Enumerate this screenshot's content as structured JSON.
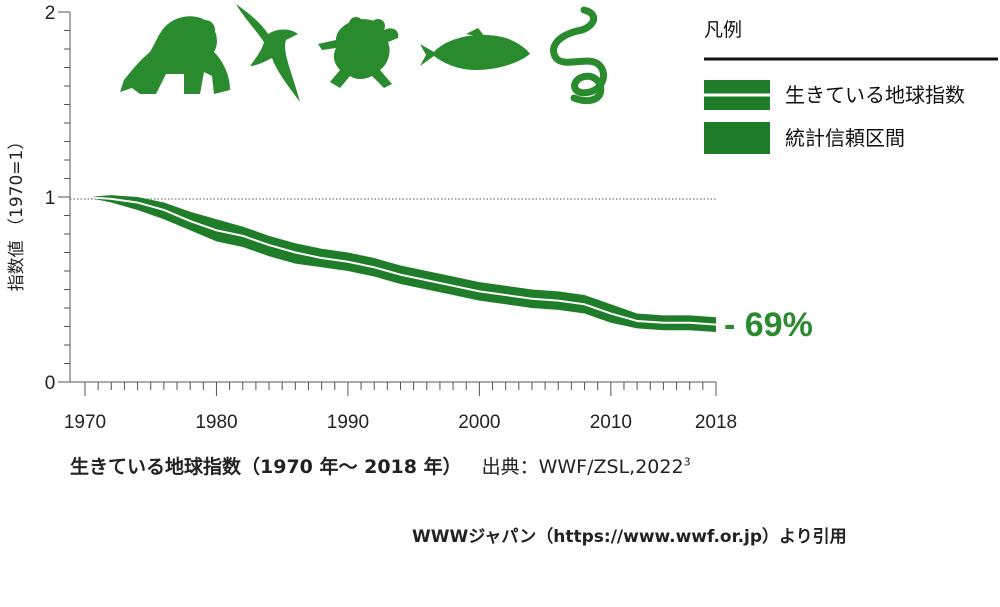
{
  "chart_data": {
    "type": "area",
    "title": "生きている地球指数（1970 年〜 2018 年）",
    "source_label": "出典：WWF/ZSL,2022",
    "source_superscript": "3",
    "ylabel": "指数値 （1970=1）",
    "xlim": [
      1970,
      2018
    ],
    "ylim": [
      0,
      2
    ],
    "x_ticks": [
      "1970",
      "1980",
      "1990",
      "2000",
      "2010",
      "2018"
    ],
    "y_ticks": [
      "0",
      "1",
      "2"
    ],
    "reference_line": 1,
    "change_label": "- 69%",
    "series": [
      {
        "name": "生きている地球指数",
        "x": [
          1970,
          1972,
          1974,
          1976,
          1978,
          1980,
          1982,
          1984,
          1986,
          1988,
          1990,
          1992,
          1994,
          1996,
          1998,
          2000,
          2002,
          2004,
          2006,
          2008,
          2010,
          2012,
          2014,
          2016,
          2018
        ],
        "values": [
          1.0,
          0.99,
          0.97,
          0.93,
          0.87,
          0.82,
          0.79,
          0.74,
          0.7,
          0.67,
          0.65,
          0.62,
          0.58,
          0.55,
          0.52,
          0.49,
          0.47,
          0.45,
          0.44,
          0.42,
          0.37,
          0.33,
          0.32,
          0.32,
          0.31
        ]
      },
      {
        "name": "統計信頼区間",
        "upper": [
          1.0,
          1.01,
          1.0,
          0.97,
          0.92,
          0.88,
          0.84,
          0.79,
          0.75,
          0.72,
          0.7,
          0.67,
          0.63,
          0.6,
          0.57,
          0.54,
          0.52,
          0.5,
          0.49,
          0.47,
          0.42,
          0.37,
          0.36,
          0.36,
          0.35
        ],
        "lower": [
          1.0,
          0.97,
          0.93,
          0.88,
          0.82,
          0.76,
          0.73,
          0.68,
          0.64,
          0.62,
          0.6,
          0.57,
          0.53,
          0.5,
          0.47,
          0.44,
          0.42,
          0.4,
          0.39,
          0.37,
          0.32,
          0.29,
          0.28,
          0.28,
          0.27
        ]
      }
    ],
    "legend": {
      "title": "凡例",
      "position": "top-right",
      "items": [
        "生きている地球指数",
        "統計信頼区間"
      ]
    },
    "colors": {
      "band": "#1f7d2a",
      "line": "#ffffff",
      "accent": "#2a8a2e",
      "silhouette": "#2a8a2e"
    },
    "icons": [
      "gorilla-icon",
      "bird-icon",
      "frog-icon",
      "fish-icon",
      "snake-icon"
    ]
  },
  "credit": "WWWジャパン（https://www.wwf.or.jp）より引用"
}
